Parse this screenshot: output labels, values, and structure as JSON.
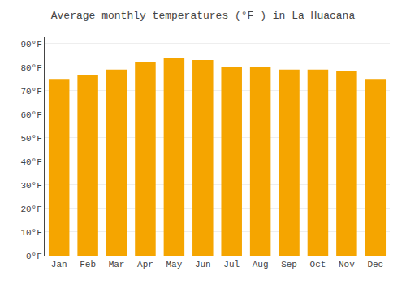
{
  "chart_data": {
    "type": "bar",
    "title": "Average monthly temperatures (°F ) in La Huacana",
    "categories": [
      "Jan",
      "Feb",
      "Mar",
      "Apr",
      "May",
      "Jun",
      "Jul",
      "Aug",
      "Sep",
      "Oct",
      "Nov",
      "Dec"
    ],
    "values": [
      75,
      76.5,
      79,
      82,
      84,
      83,
      80,
      80,
      79,
      79,
      78.5,
      75
    ],
    "color": "#F5A500",
    "ylim": [
      0,
      93
    ],
    "yticks": [
      {
        "value": 0,
        "label": "0°F"
      },
      {
        "value": 10,
        "label": "10°F"
      },
      {
        "value": 20,
        "label": "20°F"
      },
      {
        "value": 30,
        "label": "30°F"
      },
      {
        "value": 40,
        "label": "40°F"
      },
      {
        "value": 50,
        "label": "50°F"
      },
      {
        "value": 60,
        "label": "60°F"
      },
      {
        "value": 70,
        "label": "70°F"
      },
      {
        "value": 80,
        "label": "80°F"
      },
      {
        "value": 90,
        "label": "90°F"
      }
    ],
    "grid": true
  }
}
